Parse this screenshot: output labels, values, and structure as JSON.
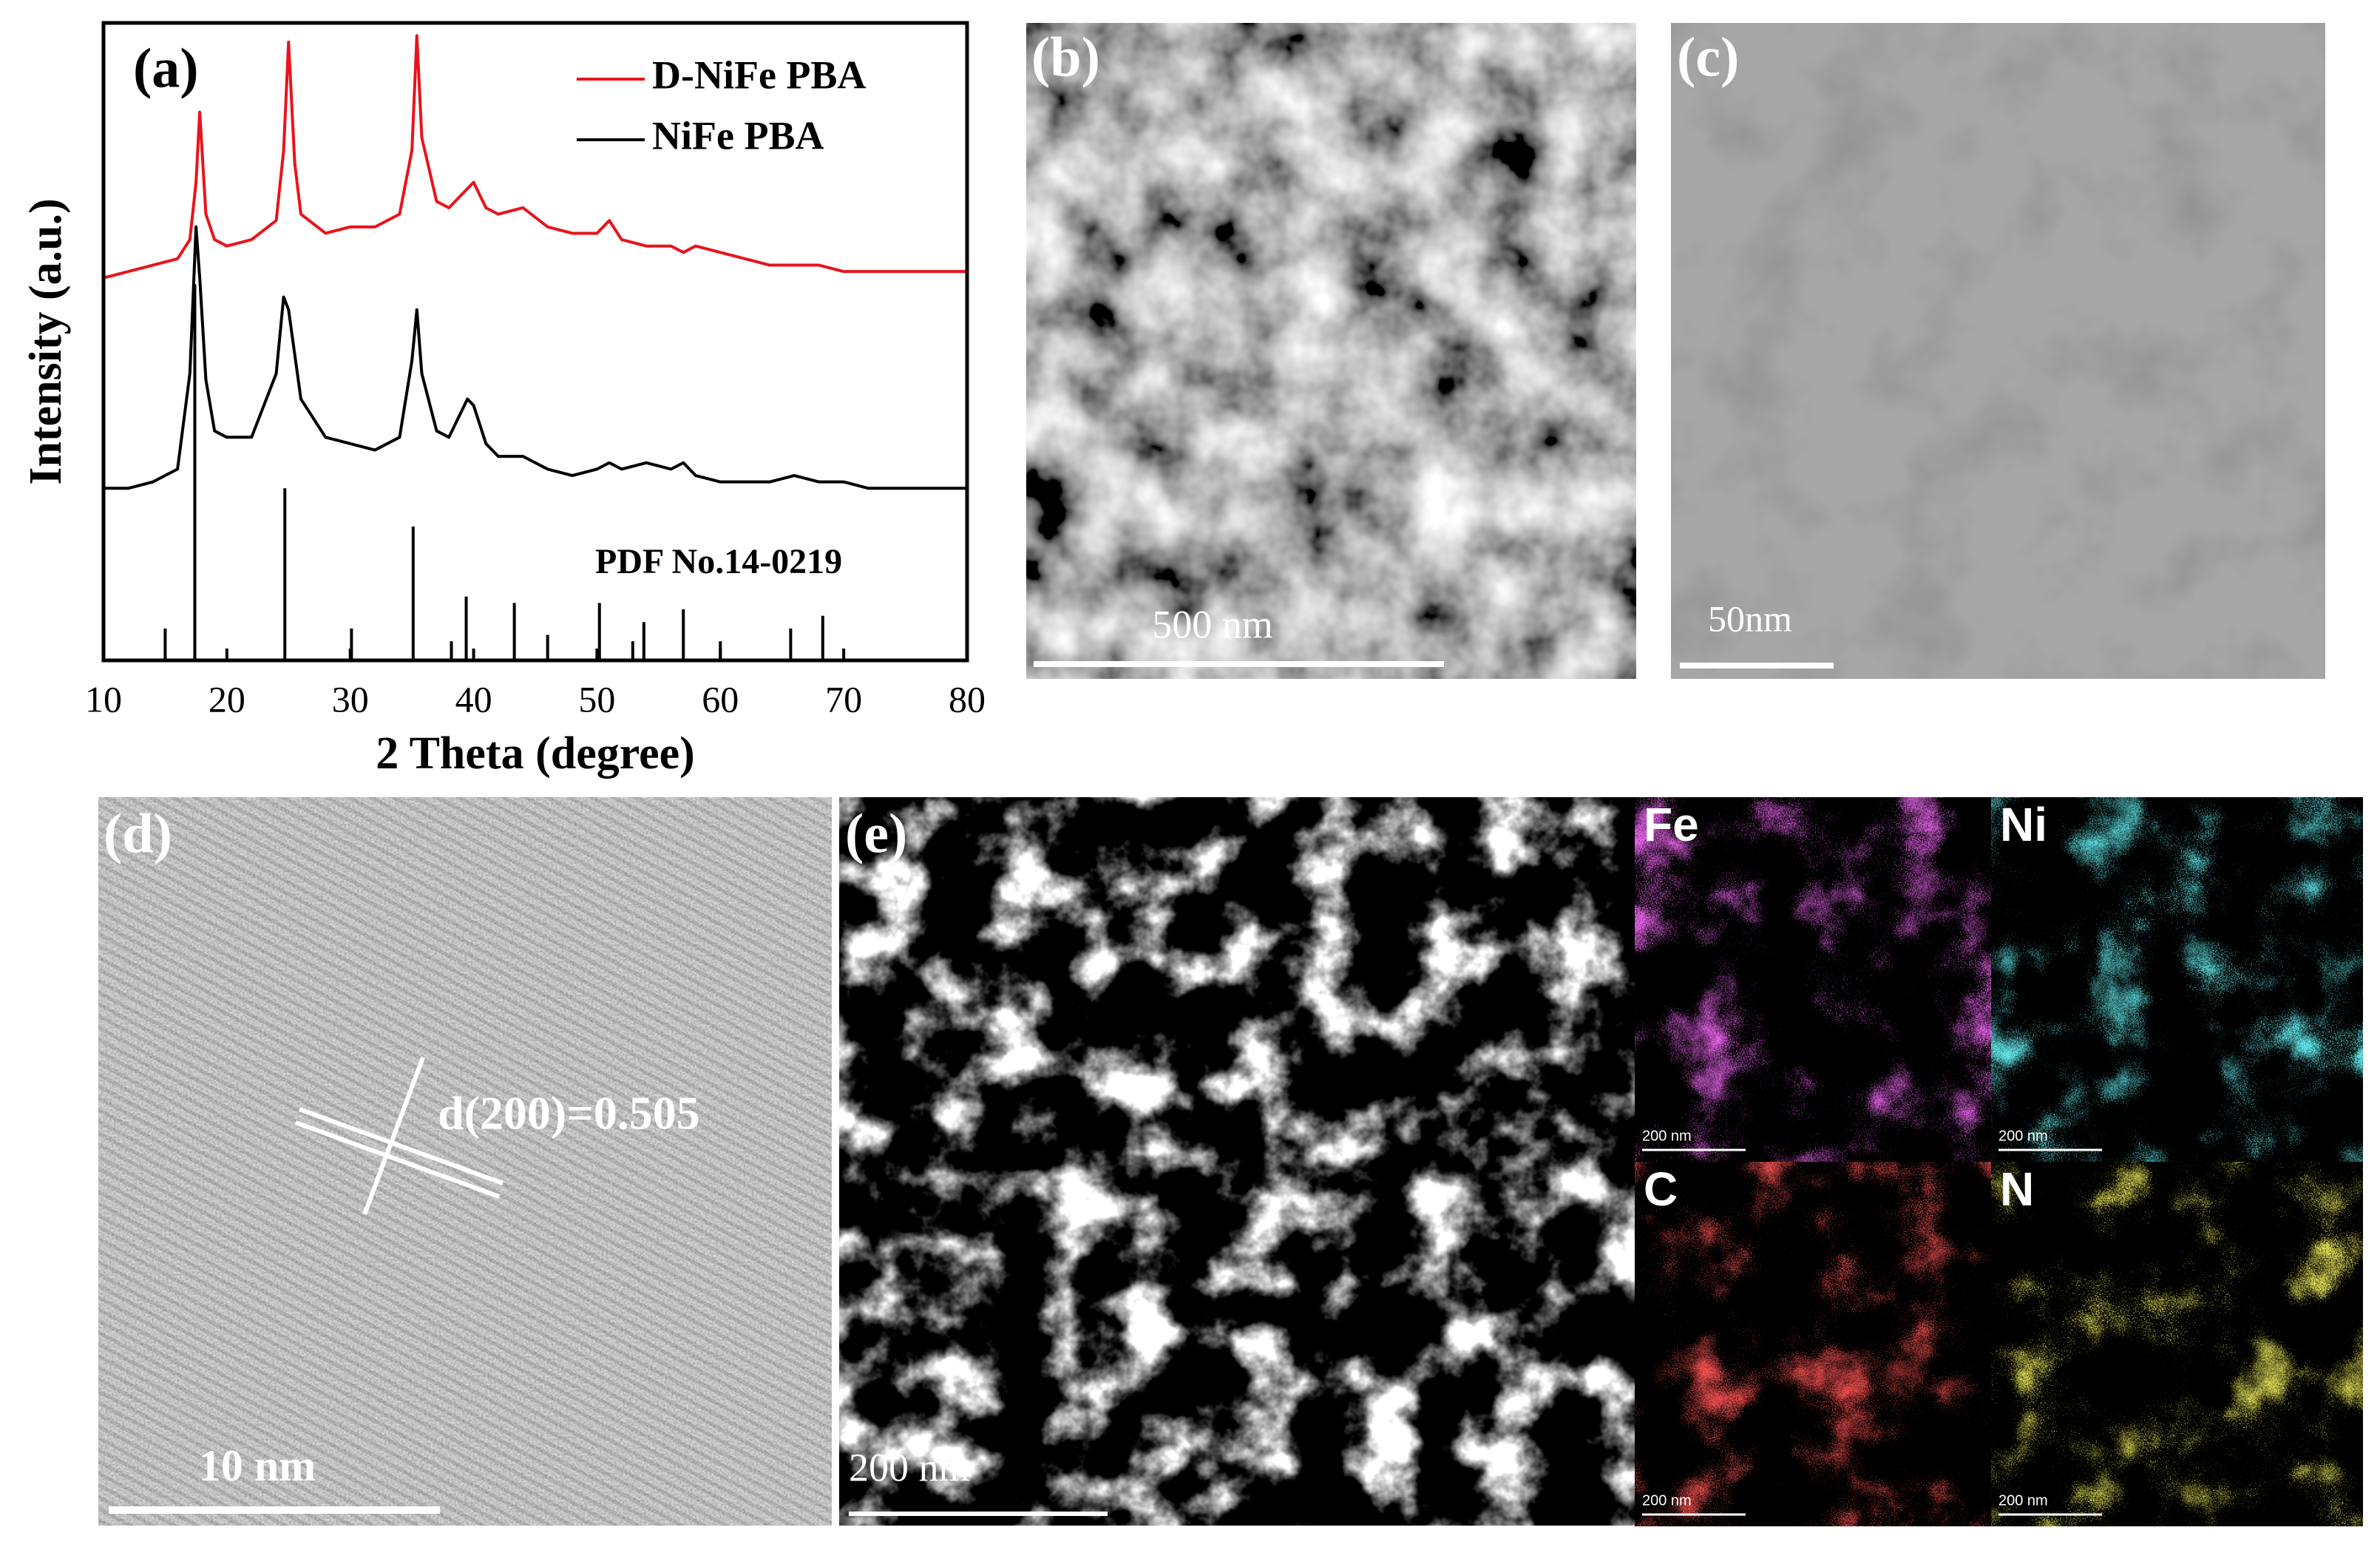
{
  "chart_data": {
    "type": "line",
    "panel_label": "(a)",
    "xlabel": "2 Theta (degree)",
    "ylabel": "Intensity (a.u.)",
    "xlim": [
      10,
      80
    ],
    "xticks": [
      10,
      20,
      30,
      40,
      50,
      60,
      70,
      80
    ],
    "ylim": [
      0,
      100
    ],
    "legend": "upper right",
    "x": [
      10,
      12,
      14,
      16,
      17,
      17.5,
      17.8,
      18.3,
      19,
      20,
      22,
      24,
      24.6,
      25,
      25.5,
      26,
      28,
      30,
      32,
      34,
      35,
      35.4,
      35.8,
      37,
      38,
      39.5,
      40,
      41,
      42,
      44,
      46,
      48,
      50,
      51,
      52,
      54,
      56,
      57,
      58,
      60,
      62,
      64,
      66,
      68,
      70,
      72,
      74,
      76,
      78,
      80
    ],
    "series": [
      {
        "name": "D-NiFe PBA",
        "color": "#e8141b",
        "values": [
          60,
          61,
          62,
          63,
          66,
          75,
          86,
          70,
          66,
          65,
          66,
          69,
          80,
          97,
          78,
          70,
          67,
          68,
          68,
          70,
          80,
          98,
          82,
          72,
          71,
          74,
          75,
          71,
          70,
          71,
          68,
          67,
          67,
          69,
          66,
          65,
          65,
          64,
          65,
          64,
          63,
          62,
          62,
          62,
          61,
          61,
          61,
          61,
          61,
          61
        ]
      },
      {
        "name": "NiFe PBA",
        "color": "#000000",
        "values": [
          27,
          27,
          28,
          30,
          45,
          68,
          60,
          44,
          36,
          35,
          35,
          45,
          57,
          55,
          48,
          41,
          35,
          34,
          33,
          35,
          47,
          55,
          45,
          36,
          35,
          41,
          40,
          34,
          32,
          32,
          30,
          29,
          30,
          31,
          30,
          31,
          30,
          31,
          29,
          28,
          28,
          28,
          29,
          28,
          28,
          27,
          27,
          27,
          27,
          27
        ]
      }
    ],
    "reference": {
      "label": "PDF No.14-0219",
      "color": "#000000",
      "x": [
        15,
        17.4,
        24.7,
        30.1,
        35.1,
        38.2,
        39.4,
        43.3,
        46,
        50.2,
        52.9,
        53.8,
        57,
        60,
        65.7,
        68.3
      ],
      "values": [
        5,
        59,
        27,
        5,
        21,
        3,
        10,
        9,
        4,
        9,
        3,
        6,
        8,
        3,
        5,
        7
      ]
    }
  },
  "panels": [
    {
      "label": "(b)",
      "scale_bar": "500 nm"
    },
    {
      "label": "(c)",
      "scale_bar": "50nm"
    },
    {
      "label": "(d)",
      "scale_bar": "10 nm",
      "annotation": "d(200)=0.505"
    },
    {
      "label": "(e)",
      "scale_bar": "200 nm"
    }
  ],
  "maps": [
    {
      "element": "Fe",
      "scale_bar": "200 nm",
      "color": "#c21fc8"
    },
    {
      "element": "Ni",
      "scale_bar": "200 nm",
      "color": "#1fc8cc"
    },
    {
      "element": "C",
      "scale_bar": "200 nm",
      "color": "#e01414"
    },
    {
      "element": "N",
      "scale_bar": "200 nm",
      "color": "#d8d21a"
    }
  ]
}
